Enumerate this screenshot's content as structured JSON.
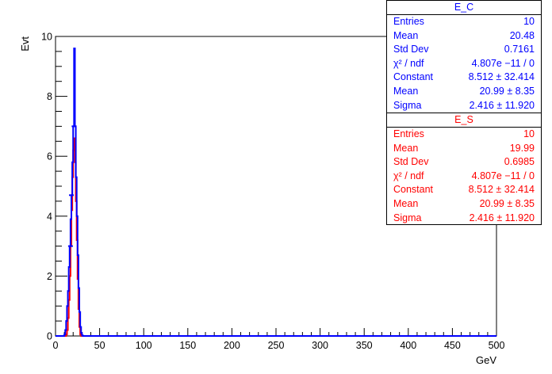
{
  "chart_data": {
    "type": "histogram",
    "xlabel": "GeV",
    "ylabel": "Evt",
    "xlim": [
      0,
      500
    ],
    "ylim": [
      0,
      10
    ],
    "x_ticks": [
      "0",
      "50",
      "100",
      "150",
      "200",
      "250",
      "300",
      "350",
      "400",
      "450",
      "500"
    ],
    "y_ticks": [
      "0",
      "2",
      "4",
      "6",
      "8",
      "10"
    ],
    "grid": false,
    "bin_width": 1,
    "series": [
      {
        "name": "E_C",
        "color": "#0000ff",
        "x": [
          10,
          11,
          12,
          13,
          14,
          15,
          16,
          17,
          18,
          19,
          20,
          21,
          22,
          23,
          24,
          25,
          26,
          27,
          28,
          29,
          30
        ],
        "values": [
          0.05,
          0.2,
          0.5,
          1.0,
          1.5,
          2.3,
          3.0,
          3.9,
          4.7,
          5.8,
          7.0,
          9.6,
          7.0,
          5.3,
          4.0,
          2.7,
          1.6,
          0.8,
          0.3,
          0.1,
          0.02
        ]
      },
      {
        "name": "E_S",
        "color": "#ff0000",
        "x": [
          12,
          13,
          14,
          15,
          16,
          17,
          18,
          19,
          20,
          21,
          22,
          23,
          24,
          25,
          26,
          27,
          28
        ],
        "values": [
          0.05,
          0.2,
          0.6,
          1.2,
          2.0,
          3.0,
          4.2,
          5.3,
          6.2,
          6.6,
          5.8,
          4.5,
          3.2,
          1.9,
          0.9,
          0.3,
          0.05
        ]
      }
    ],
    "fit_markers": [
      {
        "x": 21,
        "y": 7.0
      },
      {
        "x": 18,
        "y": 4.7
      },
      {
        "x": 17,
        "y": 3.0
      }
    ]
  },
  "stats": [
    {
      "title": "E_C",
      "color": "#0000ff",
      "rows": [
        {
          "label": "Entries",
          "value": "10"
        },
        {
          "label": "Mean",
          "value": "20.48"
        },
        {
          "label": "Std Dev",
          "value": "0.7161"
        },
        {
          "label": "χ² / ndf",
          "value": "4.807e −11 / 0"
        },
        {
          "label": "Constant",
          "value": "8.512  ± 32.414"
        },
        {
          "label": "Mean",
          "value": "20.99  ± 8.35"
        },
        {
          "label": "Sigma",
          "value": "2.416  ± 11.920"
        }
      ]
    },
    {
      "title": "E_S",
      "color": "#ff0000",
      "rows": [
        {
          "label": "Entries",
          "value": "10"
        },
        {
          "label": "Mean",
          "value": "19.99"
        },
        {
          "label": "Std Dev",
          "value": "0.6985"
        },
        {
          "label": "χ² / ndf",
          "value": "4.807e −11 / 0"
        },
        {
          "label": "Constant",
          "value": "8.512  ± 32.414"
        },
        {
          "label": "Mean",
          "value": "20.99  ± 8.35"
        },
        {
          "label": "Sigma",
          "value": "2.416  ± 11.920"
        }
      ]
    }
  ]
}
